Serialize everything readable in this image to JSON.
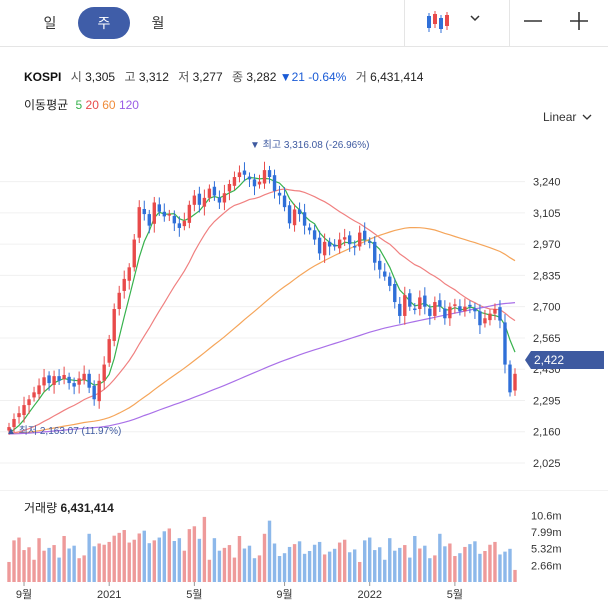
{
  "tabs": [
    {
      "label": "일",
      "active": false
    },
    {
      "label": "주",
      "active": true
    },
    {
      "label": "월",
      "active": false
    }
  ],
  "toolbar": {
    "chart_type_icon": "candlestick-icon",
    "dropdown_icon": "chevron-down-icon",
    "zoom_out_icon": "minus-icon",
    "zoom_in_icon": "plus-icon"
  },
  "quote": {
    "symbol": "KOSPI",
    "open_label": "시",
    "open": "3,305",
    "high_label": "고",
    "high": "3,312",
    "low_label": "저",
    "low": "3,277",
    "close_label": "종",
    "close": "3,282",
    "change": "▼21 -0.64%",
    "volume_label": "거",
    "volume": "6,431,414"
  },
  "ma_legend": {
    "title": "이동평균",
    "periods": [
      "5",
      "20",
      "60",
      "120"
    ]
  },
  "scale_mode": "Linear",
  "price_axis": {
    "ticks": [
      "3,240",
      "3,105",
      "2,970",
      "2,835",
      "2,700",
      "2,565",
      "2,430",
      "2,295",
      "2,160",
      "2,025"
    ]
  },
  "current_price_tag": "2,422",
  "high_marker": "최고 3,316.08 (-26.96%)",
  "low_marker": "최저 2,163.07 (11.97%)",
  "volume": {
    "title": "거래량",
    "value": "6,431,414",
    "ticks": [
      "10.6m",
      "7.99m",
      "5.32m",
      "2.66m"
    ]
  },
  "time_axis": {
    "labels": [
      "9월",
      "2021",
      "5월",
      "9월",
      "2022",
      "5월"
    ]
  },
  "colors": {
    "up": "#e84a4a",
    "down": "#2f6fd8",
    "ma5": "#37b24d",
    "ma20": "#f08080",
    "ma60": "#f5a55a",
    "ma120": "#a970e8",
    "vol_up": "#ee9a9a",
    "vol_down": "#8db8ea",
    "tag": "#3e5aa0"
  },
  "chart_data": {
    "type": "candlestick",
    "title": "KOSPI weekly",
    "x_labels": [
      "9월",
      "2021",
      "5월",
      "9월",
      "2022",
      "5월"
    ],
    "y_range": [
      1960,
      3420
    ],
    "closes": [
      2180,
      2215,
      2240,
      2275,
      2300,
      2330,
      2360,
      2395,
      2370,
      2400,
      2380,
      2405,
      2370,
      2355,
      2390,
      2410,
      2350,
      2300,
      2380,
      2450,
      2560,
      2690,
      2760,
      2820,
      2870,
      2990,
      3130,
      3100,
      3050,
      3150,
      3110,
      3090,
      3100,
      3060,
      3040,
      3070,
      3140,
      3180,
      3140,
      3170,
      3210,
      3180,
      3150,
      3190,
      3230,
      3260,
      3280,
      3270,
      3250,
      3220,
      3240,
      3290,
      3260,
      3200,
      3180,
      3130,
      3060,
      3120,
      3100,
      3050,
      3030,
      2990,
      2930,
      2980,
      2960,
      2960,
      2990,
      3000,
      2970,
      2960,
      3020,
      2990,
      2980,
      2890,
      2860,
      2830,
      2790,
      2720,
      2660,
      2750,
      2700,
      2690,
      2740,
      2700,
      2660,
      2720,
      2700,
      2650,
      2700,
      2710,
      2680,
      2700,
      2700,
      2680,
      2620,
      2650,
      2670,
      2690,
      2640,
      2450,
      2330,
      2410
    ],
    "ma_series": [
      "5",
      "20",
      "60",
      "120"
    ],
    "volume_range": [
      0,
      11500000
    ],
    "volume_ticks": [
      10600000,
      7990000,
      5320000,
      2660000
    ],
    "last_volume": 6431414
  }
}
